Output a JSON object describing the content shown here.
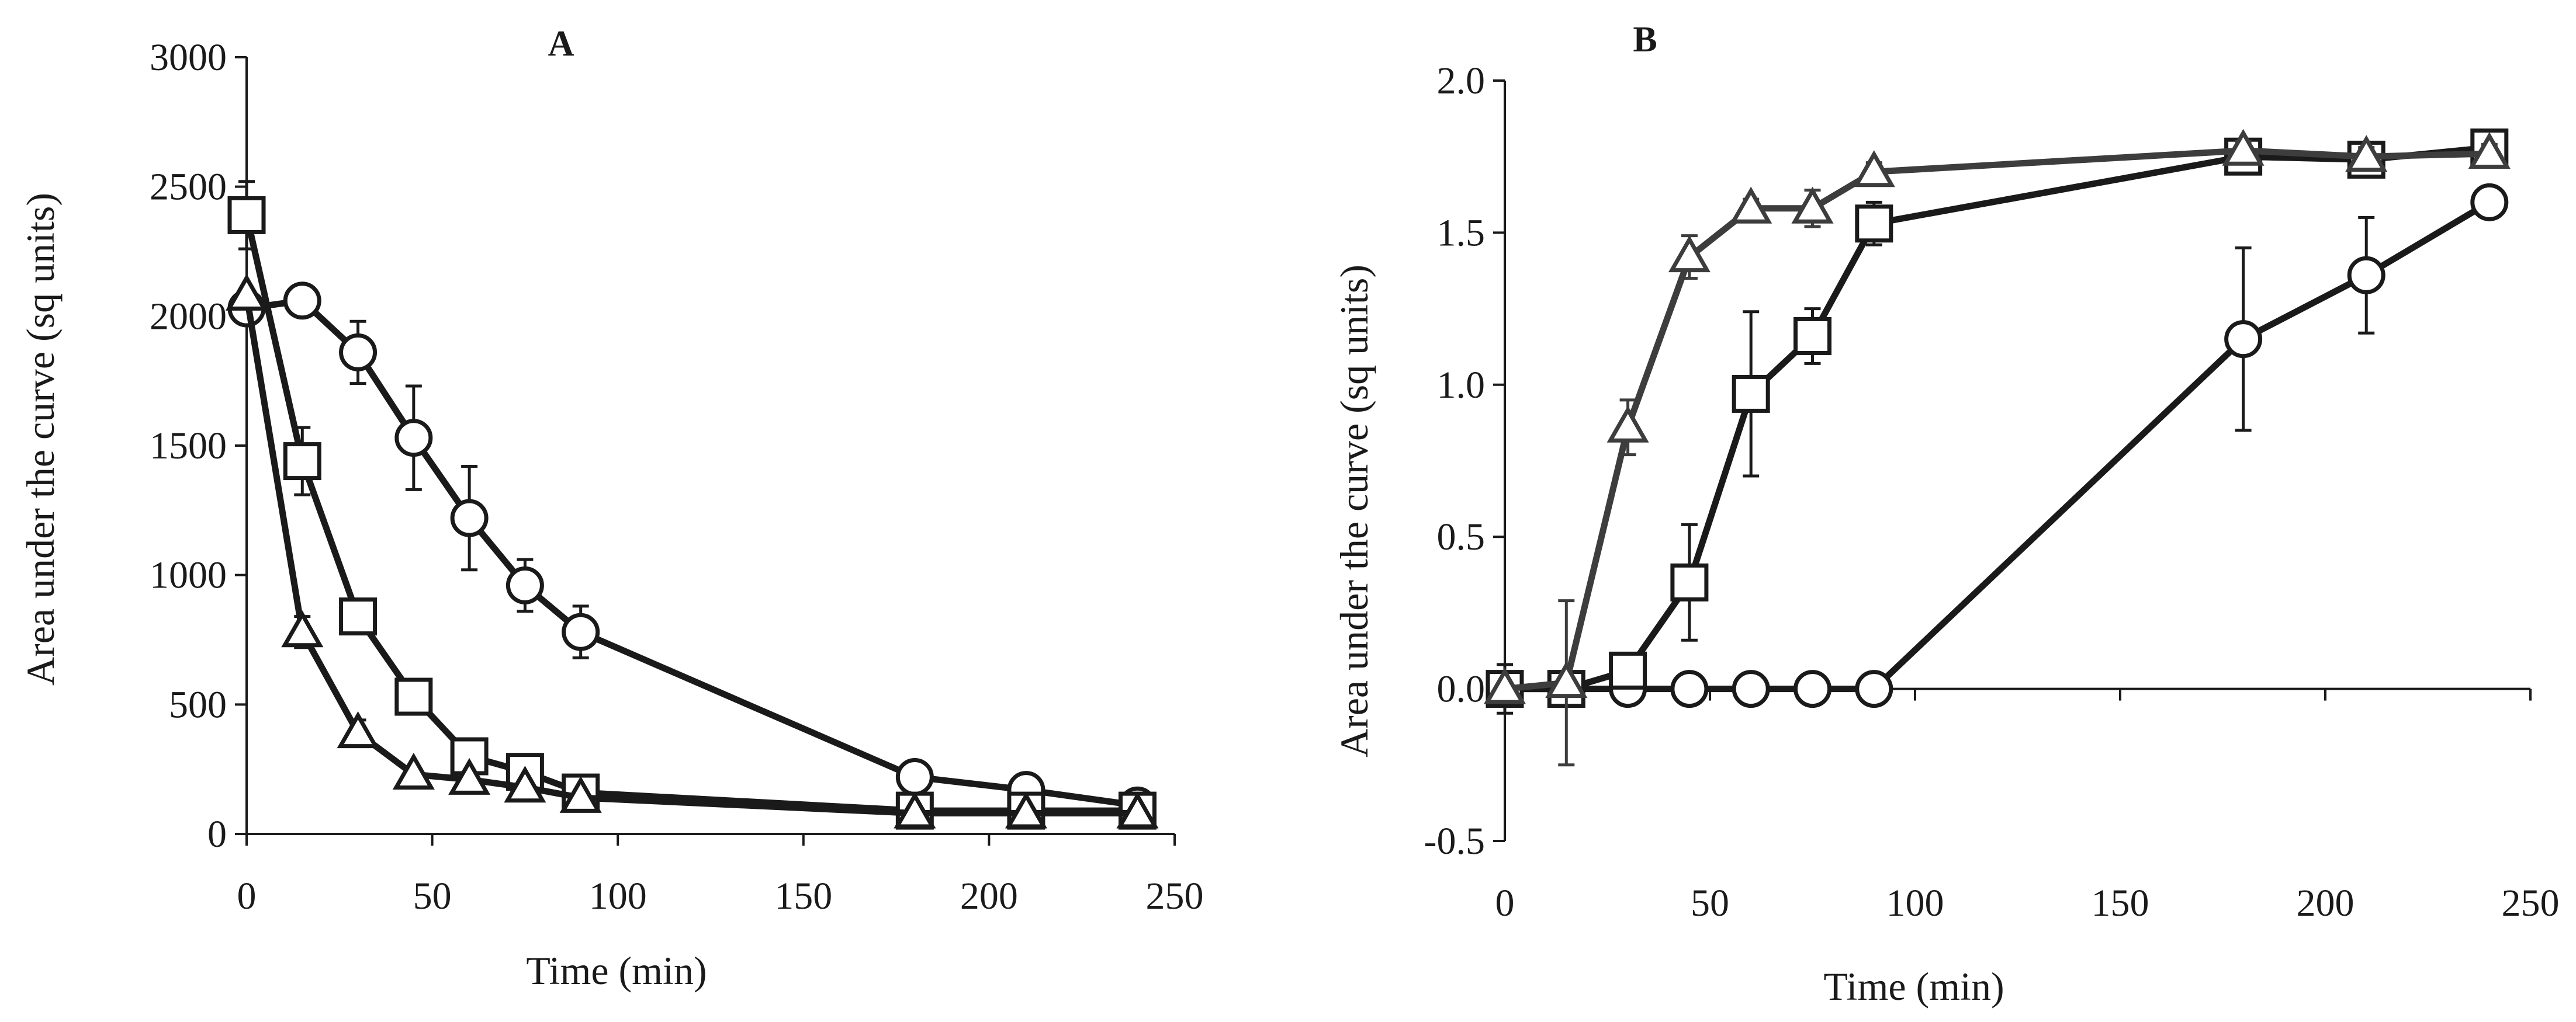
{
  "colors": {
    "axis": "#1a1a1a",
    "series_dark": "#1a1a1a",
    "series_gray": "#3d3d3d"
  },
  "chart_data": [
    {
      "id": "A",
      "type": "line",
      "title": "A",
      "xlabel": "Time (min)",
      "ylabel": "Area under the curve (sq units)",
      "xlim": [
        0,
        250
      ],
      "ylim": [
        0,
        3000
      ],
      "xticks": [
        0,
        50,
        100,
        150,
        200,
        250
      ],
      "yticks": [
        0,
        500,
        1000,
        1500,
        2000,
        2500,
        3000
      ],
      "x": [
        0,
        15,
        30,
        45,
        60,
        75,
        90,
        180,
        210,
        240
      ],
      "series": [
        {
          "name": "circle",
          "marker": "circle",
          "color": "#1a1a1a",
          "values": [
            2030,
            2060,
            1860,
            1530,
            1220,
            960,
            780,
            220,
            170,
            110
          ],
          "errors": [
            0,
            0,
            120,
            200,
            200,
            100,
            100,
            0,
            0,
            0
          ]
        },
        {
          "name": "square",
          "marker": "square",
          "color": "#1a1a1a",
          "values": [
            2390,
            1440,
            840,
            530,
            300,
            240,
            160,
            90,
            90,
            90
          ],
          "errors": [
            130,
            130,
            50,
            0,
            0,
            0,
            0,
            0,
            0,
            0
          ]
        },
        {
          "name": "triangle",
          "marker": "triangle",
          "color": "#1a1a1a",
          "values": [
            2080,
            780,
            390,
            230,
            210,
            180,
            140,
            80,
            80,
            80
          ],
          "errors": [
            0,
            60,
            50,
            0,
            0,
            0,
            0,
            0,
            0,
            0
          ]
        }
      ]
    },
    {
      "id": "B",
      "type": "line",
      "title": "B",
      "xlabel": "Time (min)",
      "ylabel": "Area under the curve (sq units)",
      "xlim": [
        0,
        250
      ],
      "ylim": [
        -0.5,
        2.0
      ],
      "xticks": [
        0,
        50,
        100,
        150,
        200,
        250
      ],
      "yticks": [
        -0.5,
        0.0,
        0.5,
        1.0,
        1.5,
        2.0
      ],
      "ytick_labels": [
        "-0.5",
        "0.0",
        "0.5",
        "1.0",
        "1.5",
        "2.0"
      ],
      "x": [
        0,
        15,
        30,
        45,
        60,
        75,
        90,
        180,
        210,
        240
      ],
      "series": [
        {
          "name": "circle",
          "marker": "circle",
          "color": "#1a1a1a",
          "values": [
            0,
            0,
            0,
            0,
            0,
            0,
            0,
            1.15,
            1.36,
            1.6
          ],
          "errors": [
            0,
            0,
            0,
            0,
            0,
            0,
            0,
            0.3,
            0.19,
            0
          ]
        },
        {
          "name": "square",
          "marker": "square",
          "color": "#1a1a1a",
          "values": [
            0,
            0,
            0.06,
            0.35,
            0.97,
            1.16,
            1.53,
            1.75,
            1.74,
            1.78
          ],
          "errors": [
            0.08,
            0.05,
            0.03,
            0.19,
            0.27,
            0.09,
            0.07,
            0.03,
            0.03,
            0
          ]
        },
        {
          "name": "triangle",
          "marker": "triangle",
          "color": "#3d3d3d",
          "values": [
            0,
            0.02,
            0.86,
            1.42,
            1.58,
            1.58,
            1.7,
            1.77,
            1.75,
            1.76
          ],
          "errors": [
            0,
            0.27,
            0.09,
            0.07,
            0.03,
            0.06,
            0.03,
            0.03,
            0.03,
            0.03
          ]
        }
      ]
    }
  ]
}
